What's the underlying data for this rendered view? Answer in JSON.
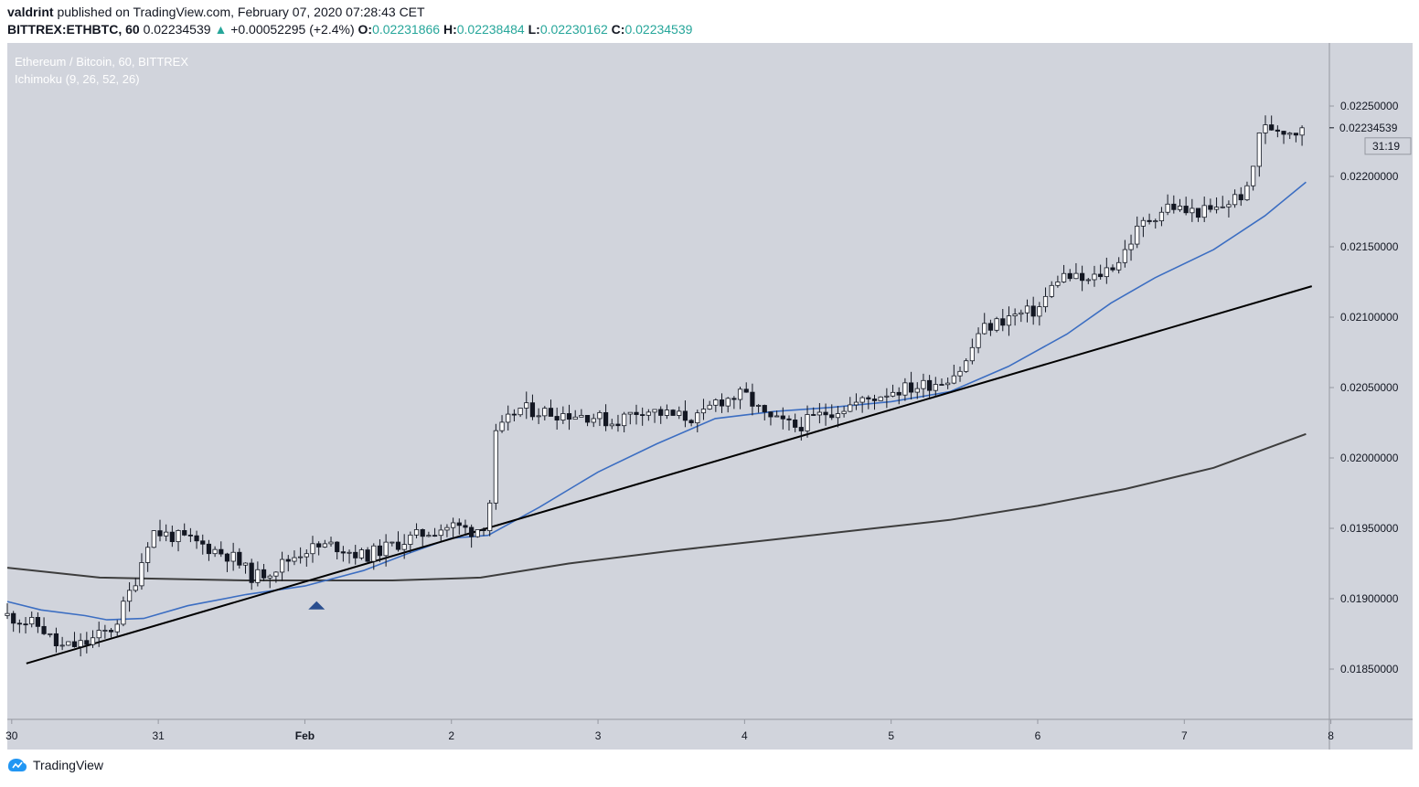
{
  "header": {
    "author": "valdrint",
    "published": "published on TradingView.com, February 07, 2020 07:28:43 CET",
    "symbol": "BITTREX:ETHBTC, 60",
    "last": "0.02234539",
    "change_arrow": "▲",
    "change": "+0.00052295 (+2.4%)",
    "o_label": "O:",
    "o": "0.02231866",
    "h_label": "H:",
    "h": "0.02238484",
    "l_label": "L:",
    "l": "0.02230162",
    "c_label": "C:",
    "c": "0.02234539"
  },
  "legend": {
    "title": "Ethereum / Bitcoin, 60, BITTREX",
    "indicator": "Ichimoku (9, 26, 52, 26)"
  },
  "price_tag": {
    "value": "0.02234539",
    "countdown": "31:19"
  },
  "footer": {
    "brand": "TradingView",
    "logo_icon": "tradingview-logo-icon"
  },
  "colors": {
    "plot_bg": "#d1d4dc",
    "up": "#ffffff",
    "down": "#131722",
    "ma_blue": "#3c6ec2",
    "ma_dark": "#3d3d3d",
    "trend": "#000000",
    "marker": "#2a4e8f"
  },
  "chart_data": {
    "type": "candlestick",
    "title": "Ethereum / Bitcoin, 60, BITTREX",
    "x_ticks": [
      "30",
      "31",
      "Feb",
      "2",
      "3",
      "4",
      "5",
      "6",
      "7",
      "8"
    ],
    "y_ticks": [
      "0.02250000",
      "0.02200000",
      "0.02150000",
      "0.02100000",
      "0.02050000",
      "0.02000000",
      "0.01950000",
      "0.01900000",
      "0.01850000"
    ],
    "ylim": [
      0.0181,
      0.0229
    ],
    "x_range_days": [
      29.97,
      38.99
    ],
    "grid": false,
    "anchors": [
      [
        29.97,
        0.01888
      ],
      [
        30.2,
        0.0188
      ],
      [
        30.32,
        0.01865
      ],
      [
        30.5,
        0.01868
      ],
      [
        30.7,
        0.0188
      ],
      [
        30.85,
        0.01915
      ],
      [
        30.95,
        0.01948
      ],
      [
        31.2,
        0.01942
      ],
      [
        31.5,
        0.0193
      ],
      [
        31.65,
        0.01915
      ],
      [
        31.8,
        0.01922
      ],
      [
        32.0,
        0.01935
      ],
      [
        32.2,
        0.01938
      ],
      [
        32.4,
        0.0193
      ],
      [
        32.6,
        0.01938
      ],
      [
        32.85,
        0.01948
      ],
      [
        33.0,
        0.01952
      ],
      [
        33.15,
        0.01948
      ],
      [
        33.25,
        0.01955
      ],
      [
        33.3,
        0.02015
      ],
      [
        33.45,
        0.02035
      ],
      [
        33.7,
        0.02032
      ],
      [
        33.95,
        0.0203
      ],
      [
        34.1,
        0.02025
      ],
      [
        34.3,
        0.02035
      ],
      [
        34.5,
        0.0203
      ],
      [
        34.7,
        0.02028
      ],
      [
        34.8,
        0.0204
      ],
      [
        35.0,
        0.02045
      ],
      [
        35.15,
        0.02028
      ],
      [
        35.35,
        0.02022
      ],
      [
        35.55,
        0.02032
      ],
      [
        35.8,
        0.0204
      ],
      [
        36.0,
        0.02048
      ],
      [
        36.15,
        0.0205
      ],
      [
        36.35,
        0.02055
      ],
      [
        36.5,
        0.02065
      ],
      [
        36.6,
        0.0209
      ],
      [
        36.8,
        0.021
      ],
      [
        37.0,
        0.02105
      ],
      [
        37.15,
        0.0213
      ],
      [
        37.35,
        0.02125
      ],
      [
        37.55,
        0.0214
      ],
      [
        37.7,
        0.02165
      ],
      [
        37.9,
        0.0218
      ],
      [
        38.0,
        0.02175
      ],
      [
        38.2,
        0.02175
      ],
      [
        38.35,
        0.02185
      ],
      [
        38.45,
        0.0219
      ],
      [
        38.5,
        0.02232
      ],
      [
        38.6,
        0.02235
      ],
      [
        38.75,
        0.02232
      ],
      [
        38.83,
        0.02234539
      ]
    ],
    "ma_blue": [
      [
        29.97,
        0.01898
      ],
      [
        30.2,
        0.01892
      ],
      [
        30.5,
        0.01888
      ],
      [
        30.65,
        0.01885
      ],
      [
        30.9,
        0.01886
      ],
      [
        31.2,
        0.01895
      ],
      [
        31.6,
        0.01903
      ],
      [
        32.0,
        0.01909
      ],
      [
        32.4,
        0.0192
      ],
      [
        32.7,
        0.01932
      ],
      [
        33.0,
        0.01943
      ],
      [
        33.25,
        0.01945
      ],
      [
        33.6,
        0.01965
      ],
      [
        34.0,
        0.0199
      ],
      [
        34.4,
        0.0201
      ],
      [
        34.8,
        0.02028
      ],
      [
        35.2,
        0.02033
      ],
      [
        35.6,
        0.02036
      ],
      [
        36.0,
        0.0204
      ],
      [
        36.4,
        0.02047
      ],
      [
        36.8,
        0.02065
      ],
      [
        37.2,
        0.02088
      ],
      [
        37.5,
        0.0211
      ],
      [
        37.8,
        0.02128
      ],
      [
        38.2,
        0.02148
      ],
      [
        38.55,
        0.02172
      ],
      [
        38.83,
        0.02196
      ]
    ],
    "ma_dark": [
      [
        29.97,
        0.01922
      ],
      [
        30.6,
        0.01915
      ],
      [
        31.6,
        0.01913
      ],
      [
        32.6,
        0.01913
      ],
      [
        33.2,
        0.01915
      ],
      [
        33.8,
        0.01925
      ],
      [
        34.5,
        0.01934
      ],
      [
        35.2,
        0.01942
      ],
      [
        35.8,
        0.01949
      ],
      [
        36.4,
        0.01956
      ],
      [
        37.0,
        0.01966
      ],
      [
        37.6,
        0.01978
      ],
      [
        38.2,
        0.01993
      ],
      [
        38.83,
        0.02017
      ]
    ],
    "trendline": [
      [
        30.1,
        0.01854
      ],
      [
        38.87,
        0.02122
      ]
    ],
    "marker_arrow": [
      32.08,
      0.01895
    ],
    "last_price": 0.02234539
  }
}
